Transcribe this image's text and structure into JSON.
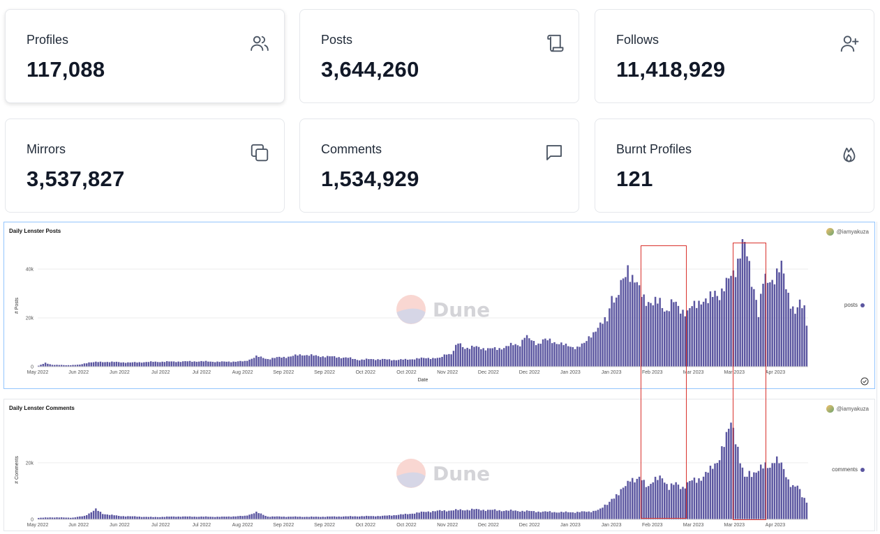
{
  "stats": [
    {
      "label": "Profiles",
      "value": "117,088",
      "icon": "users-icon"
    },
    {
      "label": "Posts",
      "value": "3,644,260",
      "icon": "scroll-icon"
    },
    {
      "label": "Follows",
      "value": "11,418,929",
      "icon": "user-plus-icon"
    },
    {
      "label": "Mirrors",
      "value": "3,537,827",
      "icon": "copy-icon"
    },
    {
      "label": "Comments",
      "value": "1,534,929",
      "icon": "message-square-icon"
    },
    {
      "label": "Burnt Profiles",
      "value": "121",
      "icon": "flame-icon"
    }
  ],
  "panels": {
    "posts": {
      "title": "Daily Lenster Posts",
      "author": "@iamyakuza",
      "legend": "posts",
      "watermark": "Dune"
    },
    "comments": {
      "title": "Daily Lenster Comments",
      "author": "@iamyakuza",
      "legend": "comments",
      "watermark": "Dune"
    }
  },
  "colors": {
    "bar": "#5b56a0",
    "highlight": "#d9302b"
  },
  "chart_data": [
    {
      "type": "bar",
      "title": "Daily Lenster Posts",
      "xlabel": "Date",
      "ylabel": "# Posts",
      "ylim": [
        0,
        50000
      ],
      "yticks": [
        "0",
        "20k",
        "40k"
      ],
      "yticks_values": [
        0,
        20000,
        40000
      ],
      "x_tick_labels": [
        "May 2022",
        "Jun 2022",
        "Jun 2022",
        "Jul 2022",
        "Jul 2022",
        "Aug 2022",
        "Sep 2022",
        "Sep 2022",
        "Oct 2022",
        "Oct 2022",
        "Nov 2022",
        "Dec 2022",
        "Dec 2022",
        "Jan 2023",
        "Jan 2023",
        "Feb 2023",
        "Mar 2023",
        "Mar 2023",
        "Apr 2023"
      ],
      "series": [
        {
          "name": "posts",
          "anchors": [
            [
              0,
              400
            ],
            [
              3,
              1500
            ],
            [
              6,
              800
            ],
            [
              12,
              600
            ],
            [
              18,
              800
            ],
            [
              22,
              1800
            ],
            [
              30,
              2000
            ],
            [
              40,
              1700
            ],
            [
              50,
              2000
            ],
            [
              60,
              2100
            ],
            [
              70,
              2200
            ],
            [
              80,
              2000
            ],
            [
              90,
              2200
            ],
            [
              95,
              4200
            ],
            [
              100,
              3200
            ],
            [
              105,
              3800
            ],
            [
              110,
              4200
            ],
            [
              115,
              5000
            ],
            [
              120,
              4500
            ],
            [
              125,
              4200
            ],
            [
              130,
              4000
            ],
            [
              135,
              3600
            ],
            [
              140,
              2800
            ],
            [
              145,
              3100
            ],
            [
              150,
              3000
            ],
            [
              155,
              2800
            ],
            [
              160,
              2900
            ],
            [
              165,
              3300
            ],
            [
              170,
              3600
            ],
            [
              175,
              3400
            ],
            [
              178,
              5500
            ],
            [
              180,
              5200
            ],
            [
              183,
              9500
            ],
            [
              186,
              7800
            ],
            [
              190,
              8000
            ],
            [
              195,
              7500
            ],
            [
              200,
              7200
            ],
            [
              205,
              8600
            ],
            [
              210,
              9200
            ],
            [
              212,
              12600
            ],
            [
              215,
              10500
            ],
            [
              218,
              9500
            ],
            [
              220,
              11000
            ],
            [
              223,
              10500
            ],
            [
              227,
              9800
            ],
            [
              230,
              8500
            ],
            [
              235,
              8000
            ],
            [
              238,
              9200
            ],
            [
              241,
              13500
            ],
            [
              245,
              16500
            ],
            [
              248,
              20000
            ],
            [
              250,
              30000
            ],
            [
              252,
              26000
            ],
            [
              255,
              36000
            ],
            [
              257,
              42000
            ],
            [
              259,
              36000
            ],
            [
              262,
              31000
            ],
            [
              265,
              28000
            ],
            [
              268,
              25000
            ],
            [
              271,
              27000
            ],
            [
              274,
              23000
            ],
            [
              277,
              26000
            ],
            [
              280,
              24000
            ],
            [
              283,
              22000
            ],
            [
              286,
              25000
            ],
            [
              289,
              28000
            ],
            [
              292,
              26000
            ],
            [
              295,
              31000
            ],
            [
              297,
              30000
            ],
            [
              300,
              33000
            ],
            [
              303,
              39000
            ],
            [
              305,
              44000
            ],
            [
              307,
              50000
            ],
            [
              309,
              45000
            ],
            [
              311,
              36000
            ],
            [
              313,
              29000
            ],
            [
              314,
              21000
            ],
            [
              316,
              34000
            ],
            [
              319,
              36000
            ],
            [
              322,
              38000
            ],
            [
              324,
              40000
            ],
            [
              326,
              33000
            ],
            [
              328,
              27000
            ],
            [
              330,
              22000
            ],
            [
              332,
              25000
            ],
            [
              334,
              24000
            ],
            [
              335,
              18500
            ]
          ]
        }
      ]
    },
    {
      "type": "bar",
      "title": "Daily Lenster Comments",
      "xlabel": "",
      "ylabel": "# Comments",
      "ylim": [
        0,
        35000
      ],
      "yticks": [
        "0",
        "20k"
      ],
      "yticks_values": [
        0,
        20000
      ],
      "x_tick_labels": [
        "May 2022",
        "Jun 2022",
        "Jun 2022",
        "Jul 2022",
        "Jul 2022",
        "Aug 2022",
        "Sep 2022",
        "Sep 2022",
        "Oct 2022",
        "Oct 2022",
        "Nov 2022",
        "Dec 2022",
        "Dec 2022",
        "Jan 2023",
        "Jan 2023",
        "Feb 2023",
        "Mar 2023",
        "Mar 2023",
        "Apr 2023"
      ],
      "series": [
        {
          "name": "comments",
          "anchors": [
            [
              0,
              500
            ],
            [
              5,
              700
            ],
            [
              15,
              600
            ],
            [
              20,
              1200
            ],
            [
              25,
              3500
            ],
            [
              28,
              2000
            ],
            [
              35,
              1200
            ],
            [
              50,
              800
            ],
            [
              60,
              1000
            ],
            [
              80,
              900
            ],
            [
              90,
              1200
            ],
            [
              95,
              2500
            ],
            [
              100,
              1000
            ],
            [
              120,
              900
            ],
            [
              140,
              1100
            ],
            [
              150,
              1200
            ],
            [
              160,
              1800
            ],
            [
              170,
              2800
            ],
            [
              180,
              3200
            ],
            [
              190,
              3500
            ],
            [
              200,
              3200
            ],
            [
              210,
              3000
            ],
            [
              220,
              2700
            ],
            [
              230,
              2500
            ],
            [
              240,
              2700
            ],
            [
              245,
              3500
            ],
            [
              248,
              5500
            ],
            [
              250,
              7500
            ],
            [
              253,
              8500
            ],
            [
              256,
              12500
            ],
            [
              258,
              15000
            ],
            [
              260,
              13000
            ],
            [
              263,
              14500
            ],
            [
              266,
              12000
            ],
            [
              269,
              13500
            ],
            [
              272,
              15500
            ],
            [
              275,
              11000
            ],
            [
              278,
              12500
            ],
            [
              281,
              11500
            ],
            [
              284,
              13000
            ],
            [
              287,
              14000
            ],
            [
              290,
              15500
            ],
            [
              293,
              17000
            ],
            [
              296,
              21000
            ],
            [
              298,
              25000
            ],
            [
              300,
              28000
            ],
            [
              302,
              34000
            ],
            [
              304,
              30000
            ],
            [
              306,
              21000
            ],
            [
              308,
              14000
            ],
            [
              310,
              16000
            ],
            [
              313,
              17500
            ],
            [
              316,
              18000
            ],
            [
              319,
              19000
            ],
            [
              321,
              22000
            ],
            [
              323,
              20000
            ],
            [
              325,
              17000
            ],
            [
              327,
              14000
            ],
            [
              329,
              12000
            ],
            [
              331,
              11500
            ],
            [
              333,
              8000
            ],
            [
              335,
              6500
            ]
          ]
        }
      ]
    }
  ]
}
